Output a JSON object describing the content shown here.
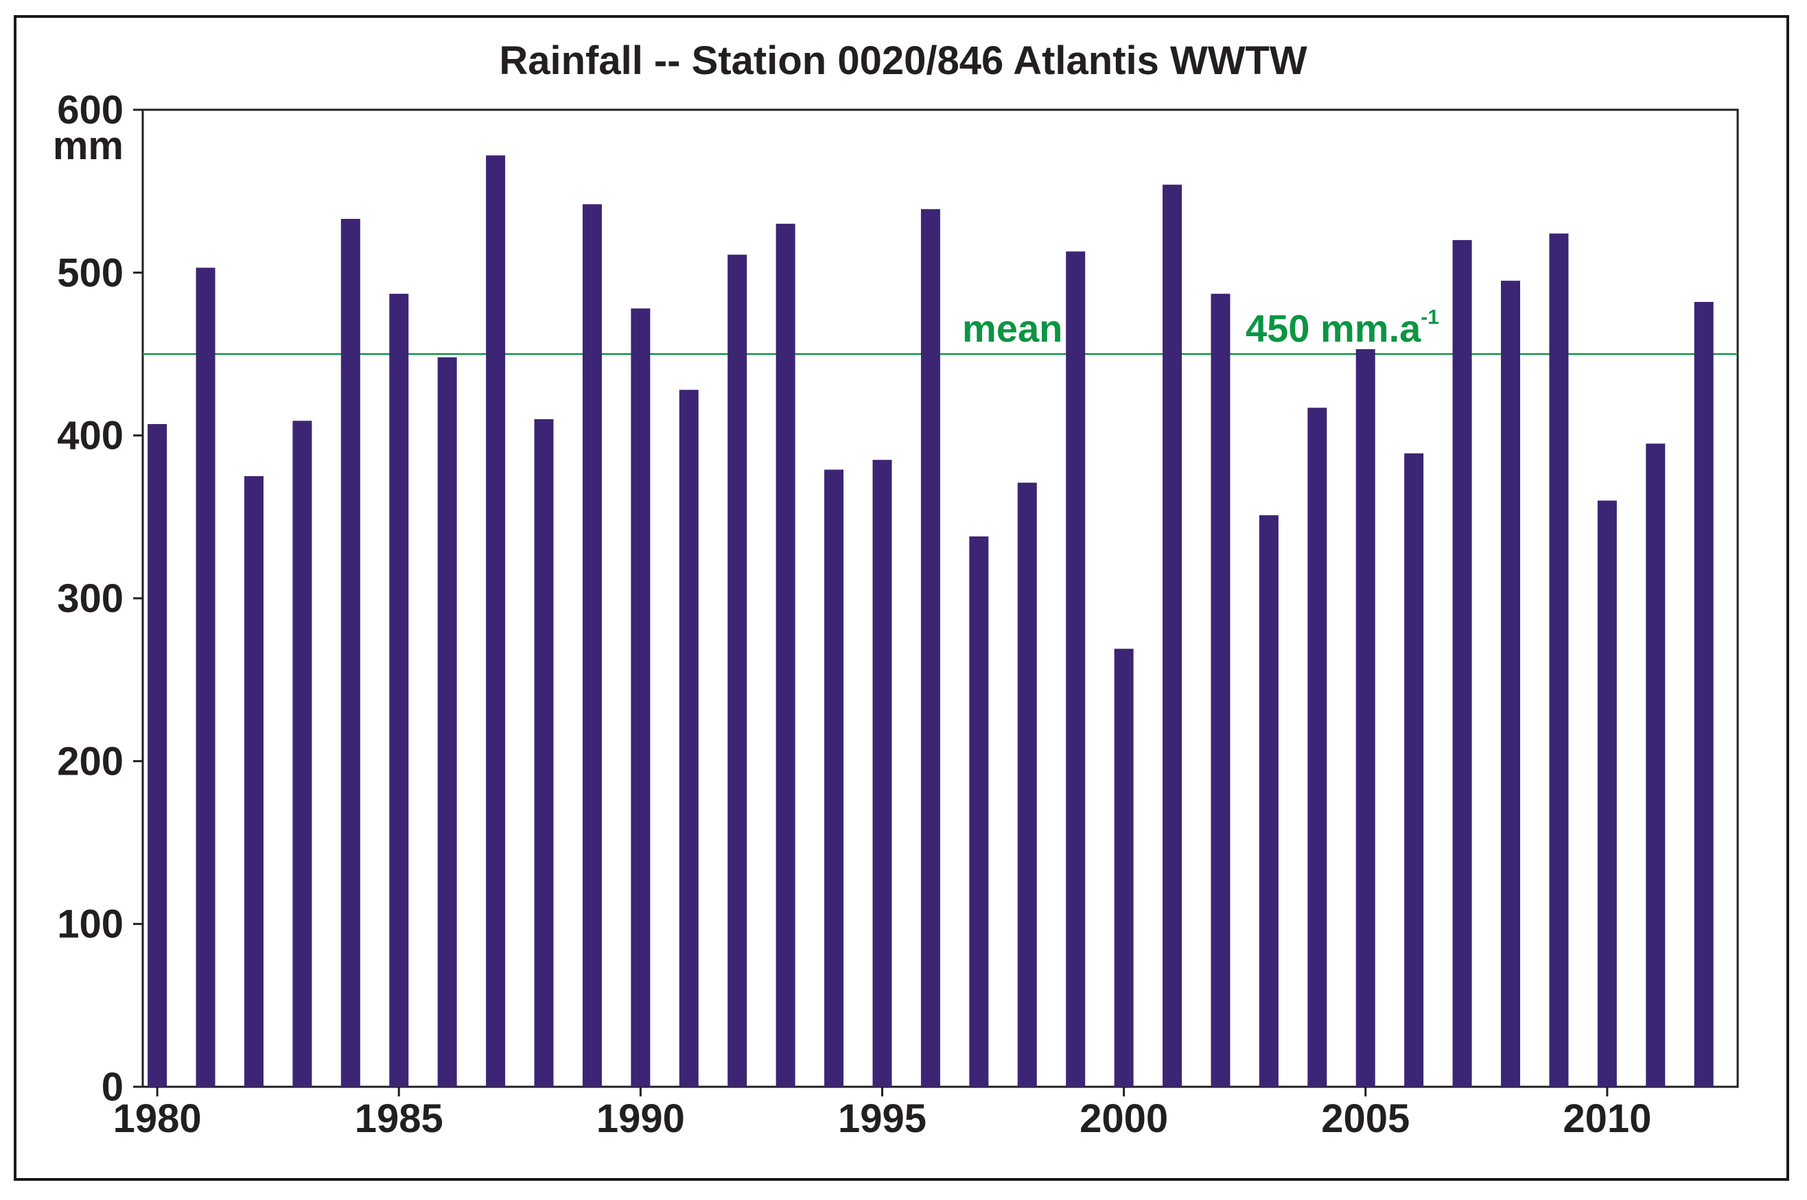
{
  "chart_data": {
    "type": "bar",
    "title": "Rainfall -- Station 0020/846 Atlantis WWTW",
    "ylabel": "mm",
    "xlabel": "",
    "ylim": [
      0,
      600
    ],
    "xlim": [
      1979.7,
      2012.7
    ],
    "yticks": [
      0,
      100,
      200,
      300,
      400,
      500,
      600
    ],
    "ytick_labels": [
      "0",
      "100",
      "200",
      "300",
      "400",
      "500",
      "600"
    ],
    "xticks": [
      1980,
      1985,
      1990,
      1995,
      2000,
      2005,
      2010
    ],
    "xtick_labels": [
      "1980",
      "1985",
      "1990",
      "1995",
      "2000",
      "2005",
      "2010"
    ],
    "categories": [
      1980,
      1981,
      1982,
      1983,
      1984,
      1985,
      1986,
      1987,
      1988,
      1989,
      1990,
      1991,
      1992,
      1993,
      1994,
      1995,
      1996,
      1997,
      1998,
      1999,
      2000,
      2001,
      2002,
      2003,
      2004,
      2005,
      2006,
      2007,
      2008,
      2009,
      2010,
      2011,
      2012
    ],
    "values": [
      407,
      503,
      375,
      409,
      533,
      487,
      448,
      572,
      410,
      542,
      478,
      428,
      511,
      530,
      379,
      385,
      539,
      338,
      371,
      513,
      269,
      554,
      487,
      351,
      417,
      453,
      389,
      520,
      495,
      524,
      360,
      395,
      482
    ],
    "bar_color": "#3c2574",
    "mean": {
      "value": 450,
      "label_word": "mean",
      "label_value": "450 mm.a",
      "label_sup": "-1",
      "color": "#0c9444"
    },
    "grid": false
  }
}
